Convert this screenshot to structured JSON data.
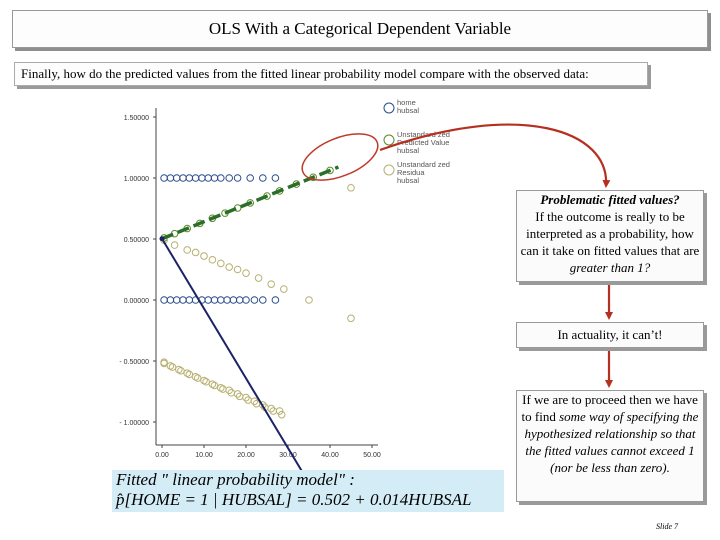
{
  "title": "OLS With a Categorical Dependent Variable",
  "intro": "Finally, how do the predicted values from the fitted linear probability model compare with the observed data:",
  "chart_data": {
    "type": "scatter",
    "yticks": [
      "1.50000",
      "1.00000",
      "0.50000",
      "0.00000",
      "- 0.50000",
      "- 1.00000"
    ],
    "ytick_values": [
      1.5,
      1.0,
      0.5,
      0.0,
      -0.5,
      -1.0
    ],
    "xticks": [
      "0.00",
      "10.00",
      "20.00",
      "30.00",
      "40.00",
      "50.00"
    ],
    "xtick_values": [
      0,
      10,
      20,
      30,
      40,
      50
    ],
    "xlim": [
      0,
      50
    ],
    "ylim": [
      -1.2,
      1.6
    ],
    "legend": [
      {
        "label": "home\nhubsal",
        "color": "#2a4c8c"
      },
      {
        "label": "Unstandard zed\nPredicted Value\nhubsal",
        "color": "#5a8a2a"
      },
      {
        "label": "Unstandard zed\nResidua\nhubsal",
        "color": "#b8b070"
      }
    ],
    "series": [
      {
        "name": "home",
        "color": "#2a4c8c",
        "x": [
          0.5,
          2,
          3.5,
          5,
          6.5,
          8,
          9.5,
          11,
          12.5,
          14,
          16,
          18,
          21,
          24,
          27,
          0.5,
          2,
          3.5,
          5,
          6.5,
          8,
          9.5,
          11,
          12.5,
          14,
          15.5,
          17,
          18.5,
          20,
          22,
          24,
          27
        ],
        "y": [
          1,
          1,
          1,
          1,
          1,
          1,
          1,
          1,
          1,
          1,
          1,
          1,
          1,
          1,
          1,
          0,
          0,
          0,
          0,
          0,
          0,
          0,
          0,
          0,
          0,
          0,
          0,
          0,
          0,
          0,
          0,
          0
        ]
      },
      {
        "name": "predicted",
        "color": "#5a8a2a",
        "x": [
          0.5,
          3,
          6,
          9,
          12,
          15,
          18,
          21,
          25,
          28,
          32,
          36,
          40
        ],
        "y": [
          0.509,
          0.544,
          0.586,
          0.628,
          0.67,
          0.712,
          0.754,
          0.796,
          0.852,
          0.894,
          0.95,
          1.006,
          1.062
        ]
      },
      {
        "name": "residual",
        "color": "#b8b070",
        "x": [
          0.5,
          3,
          6,
          8,
          10,
          12,
          14,
          16,
          18,
          20,
          23,
          26,
          29,
          35,
          45,
          0.5,
          2,
          4,
          6,
          8,
          10,
          12,
          14,
          16,
          18,
          20,
          22,
          24,
          26,
          28,
          0.5,
          2.5,
          4.5,
          6.5,
          8.5,
          10.5,
          12.5,
          14.5,
          16.5,
          18.5,
          20.5,
          22.5,
          24.5,
          26.5,
          28.5,
          45
        ],
        "y": [
          0.49,
          0.45,
          0.41,
          0.39,
          0.36,
          0.33,
          0.3,
          0.27,
          0.25,
          0.22,
          0.18,
          0.13,
          0.09,
          0.0,
          -0.15,
          -0.51,
          -0.54,
          -0.57,
          -0.6,
          -0.63,
          -0.66,
          -0.69,
          -0.72,
          -0.74,
          -0.77,
          -0.8,
          -0.83,
          -0.86,
          -0.89,
          -0.91,
          -0.52,
          -0.55,
          -0.58,
          -0.61,
          -0.64,
          -0.67,
          -0.7,
          -0.73,
          -0.76,
          -0.79,
          -0.82,
          -0.85,
          -0.88,
          -0.91,
          -0.94,
          0.92
        ]
      }
    ],
    "fit_line": {
      "x": [
        0,
        42
      ],
      "y": [
        0.502,
        1.09
      ],
      "color": "#2a6e2a"
    }
  },
  "callouts": {
    "c1_bold": "Problematic fitted values?",
    "c1_text": "If the outcome is really to be interpreted as a probability, how can it take on fitted values that are ",
    "c1_italic": "greater than 1?",
    "c2_text": "In actuality, it can’t!",
    "c3_text1": "If we are to proceed then we have to find ",
    "c3_italic": "some way of specifying the hypothesized relationship so that the fitted values cannot exceed 1 (nor be less than zero).",
    "c3_text2": ""
  },
  "formula": {
    "line1": "Fitted \" linear  probability model\" :",
    "line2": "p̂[HOME = 1 | HUBSAL] = 0.502 + 0.014HUBSAL"
  },
  "slide_number": "Slide 7",
  "colors": {
    "arrow": "#b5301e",
    "pointer_line": "#1c2266",
    "ellipse": "#c0392b"
  }
}
